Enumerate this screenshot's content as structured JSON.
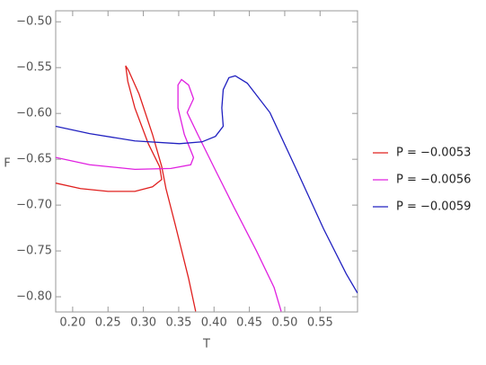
{
  "chart_data": {
    "type": "line",
    "xlabel": "T",
    "ylabel": "F",
    "xlim": [
      0.176,
      0.603
    ],
    "ylim": [
      -0.8166,
      -0.488
    ],
    "xticks": [
      {
        "value": 0.2,
        "label": "0.20"
      },
      {
        "value": 0.25,
        "label": "0.25"
      },
      {
        "value": 0.3,
        "label": "0.30"
      },
      {
        "value": 0.35,
        "label": "0.35"
      },
      {
        "value": 0.4,
        "label": "0.40"
      },
      {
        "value": 0.45,
        "label": "0.45"
      },
      {
        "value": 0.5,
        "label": "0.50"
      },
      {
        "value": 0.55,
        "label": "0.55"
      }
    ],
    "yticks": [
      {
        "value": -0.5,
        "label": "−0.50"
      },
      {
        "value": -0.55,
        "label": "−0.55"
      },
      {
        "value": -0.6,
        "label": "−0.60"
      },
      {
        "value": -0.65,
        "label": "−0.65"
      },
      {
        "value": -0.7,
        "label": "−0.70"
      },
      {
        "value": -0.75,
        "label": "−0.75"
      },
      {
        "value": -0.8,
        "label": "−0.80"
      }
    ],
    "legend": "right",
    "series": [
      {
        "name": "P = −0.0053",
        "color": "#e0201f",
        "x": [
          0.176,
          0.211,
          0.25,
          0.288,
          0.313,
          0.326,
          0.323,
          0.307,
          0.288,
          0.278,
          0.275,
          0.279,
          0.294,
          0.313,
          0.326,
          0.332,
          0.345,
          0.364,
          0.374
        ],
        "values": [
          -0.676,
          -0.682,
          -0.685,
          -0.685,
          -0.68,
          -0.672,
          -0.658,
          -0.633,
          -0.594,
          -0.565,
          -0.548,
          -0.553,
          -0.579,
          -0.623,
          -0.658,
          -0.682,
          -0.721,
          -0.78,
          -0.816
        ]
      },
      {
        "name": "P = −0.0056",
        "color": "#e020e0",
        "x": [
          0.176,
          0.224,
          0.288,
          0.339,
          0.367,
          0.371,
          0.358,
          0.349,
          0.349,
          0.354,
          0.364,
          0.371,
          0.362,
          0.377,
          0.402,
          0.428,
          0.46,
          0.485,
          0.495
        ],
        "values": [
          -0.648,
          -0.656,
          -0.661,
          -0.66,
          -0.656,
          -0.648,
          -0.623,
          -0.594,
          -0.569,
          -0.563,
          -0.569,
          -0.584,
          -0.599,
          -0.623,
          -0.662,
          -0.702,
          -0.75,
          -0.79,
          -0.816
        ]
      },
      {
        "name": "P = −0.0059",
        "color": "#2020c0",
        "x": [
          0.176,
          0.224,
          0.288,
          0.351,
          0.383,
          0.402,
          0.413,
          0.411,
          0.413,
          0.421,
          0.43,
          0.447,
          0.479,
          0.517,
          0.555,
          0.587,
          0.603
        ],
        "values": [
          -0.614,
          -0.622,
          -0.63,
          -0.633,
          -0.631,
          -0.625,
          -0.614,
          -0.594,
          -0.574,
          -0.561,
          -0.559,
          -0.567,
          -0.599,
          -0.662,
          -0.726,
          -0.775,
          -0.796
        ]
      }
    ]
  }
}
